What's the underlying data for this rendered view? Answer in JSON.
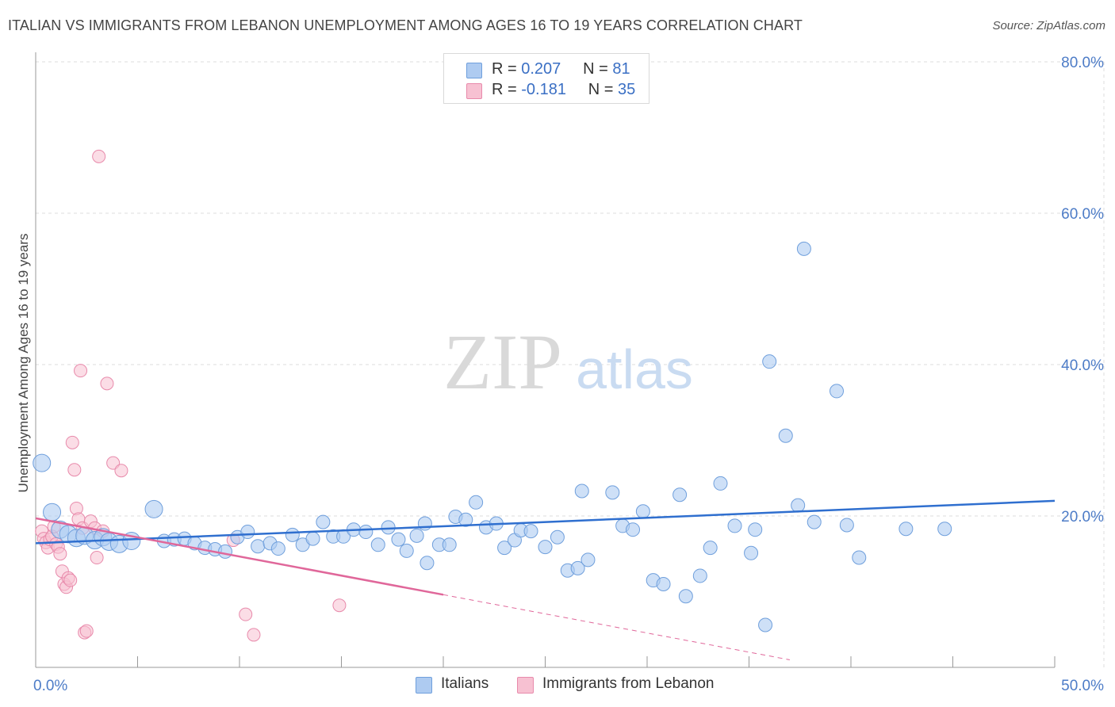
{
  "title": "ITALIAN VS IMMIGRANTS FROM LEBANON UNEMPLOYMENT AMONG AGES 16 TO 19 YEARS CORRELATION CHART",
  "source": "Source: ZipAtlas.com",
  "watermark": {
    "zip": "ZIP",
    "atlas": "atlas"
  },
  "legend": {
    "rows": [
      {
        "r_label": "R =",
        "r_value": "0.207",
        "n_label": "N =",
        "n_value": "81",
        "color": "#aecbf1"
      },
      {
        "r_label": "R =",
        "r_value": "-0.181",
        "n_label": "N =",
        "n_value": "35",
        "color": "#f7c1d2"
      }
    ]
  },
  "bottom_legend": {
    "series1": "Italians",
    "series2": "Immigrants from Lebanon"
  },
  "colors": {
    "blue_fill": "#aecbf1",
    "blue_stroke": "#6f9fdc",
    "blue_line": "#2f6fcf",
    "pink_fill": "#f7c1d2",
    "pink_stroke": "#e88aab",
    "pink_line": "#e0679a",
    "tick_text": "#4d7cc7",
    "grid": "#dddddd"
  },
  "chart_data": {
    "type": "scatter",
    "title": "ITALIAN VS IMMIGRANTS FROM LEBANON UNEMPLOYMENT AMONG AGES 16 TO 19 YEARS CORRELATION CHART",
    "xlabel": "",
    "ylabel": "Unemployment Among Ages 16 to 19 years",
    "xlim": [
      0,
      50
    ],
    "ylim": [
      0,
      80
    ],
    "x_tick_labels": [
      "0.0%",
      "50.0%"
    ],
    "y_ticks": [
      20,
      40,
      60,
      80
    ],
    "y_tick_labels": [
      "20.0%",
      "40.0%",
      "60.0%",
      "80.0%"
    ],
    "grid": true,
    "series": [
      {
        "name": "Italians",
        "r": 0.207,
        "n": 81,
        "trend": {
          "x": [
            0,
            50
          ],
          "y": [
            16.4,
            22.0
          ]
        },
        "points": [
          [
            0.3,
            27.0
          ],
          [
            0.8,
            20.5
          ],
          [
            1.2,
            18.2
          ],
          [
            1.6,
            17.6
          ],
          [
            2.0,
            17.1
          ],
          [
            2.4,
            17.4
          ],
          [
            2.9,
            16.8
          ],
          [
            3.3,
            17.2
          ],
          [
            3.6,
            16.6
          ],
          [
            4.1,
            16.3
          ],
          [
            4.7,
            16.7
          ],
          [
            5.8,
            20.9
          ],
          [
            6.3,
            16.7
          ],
          [
            6.8,
            16.9
          ],
          [
            7.3,
            17.0
          ],
          [
            7.8,
            16.4
          ],
          [
            8.3,
            15.8
          ],
          [
            8.8,
            15.6
          ],
          [
            9.3,
            15.3
          ],
          [
            9.9,
            17.2
          ],
          [
            10.4,
            17.9
          ],
          [
            10.9,
            16.0
          ],
          [
            11.5,
            16.4
          ],
          [
            11.9,
            15.7
          ],
          [
            12.6,
            17.5
          ],
          [
            13.1,
            16.2
          ],
          [
            13.6,
            17.0
          ],
          [
            14.1,
            19.2
          ],
          [
            14.6,
            17.3
          ],
          [
            15.1,
            17.3
          ],
          [
            15.6,
            18.2
          ],
          [
            16.2,
            17.9
          ],
          [
            16.8,
            16.2
          ],
          [
            17.3,
            18.5
          ],
          [
            17.8,
            16.9
          ],
          [
            18.2,
            15.4
          ],
          [
            18.7,
            17.4
          ],
          [
            19.1,
            19.0
          ],
          [
            19.2,
            13.8
          ],
          [
            19.8,
            16.2
          ],
          [
            20.3,
            16.2
          ],
          [
            20.6,
            19.9
          ],
          [
            21.1,
            19.5
          ],
          [
            21.6,
            21.8
          ],
          [
            22.1,
            18.5
          ],
          [
            22.6,
            19.0
          ],
          [
            23.0,
            15.8
          ],
          [
            23.5,
            16.8
          ],
          [
            23.8,
            18.1
          ],
          [
            24.3,
            18.0
          ],
          [
            25.0,
            15.9
          ],
          [
            25.6,
            17.2
          ],
          [
            26.1,
            12.8
          ],
          [
            26.6,
            13.1
          ],
          [
            26.8,
            23.3
          ],
          [
            27.1,
            14.2
          ],
          [
            28.3,
            23.1
          ],
          [
            28.8,
            18.7
          ],
          [
            29.3,
            18.2
          ],
          [
            29.8,
            20.6
          ],
          [
            30.3,
            11.5
          ],
          [
            30.8,
            11.0
          ],
          [
            31.6,
            22.8
          ],
          [
            31.9,
            9.4
          ],
          [
            32.6,
            12.1
          ],
          [
            33.1,
            15.8
          ],
          [
            33.6,
            24.3
          ],
          [
            34.3,
            18.7
          ],
          [
            35.1,
            15.1
          ],
          [
            35.3,
            18.2
          ],
          [
            35.8,
            5.6
          ],
          [
            36.0,
            40.4
          ],
          [
            36.8,
            30.6
          ],
          [
            37.4,
            21.4
          ],
          [
            37.7,
            55.3
          ],
          [
            38.2,
            19.2
          ],
          [
            39.3,
            36.5
          ],
          [
            39.8,
            18.8
          ],
          [
            40.4,
            14.5
          ],
          [
            42.7,
            18.3
          ],
          [
            44.6,
            18.3
          ]
        ],
        "sizes": [
          "l",
          "l",
          "l",
          "l",
          "l",
          "l",
          "l",
          "l",
          "l",
          "l",
          "l",
          "l",
          "m",
          "m",
          "m",
          "m",
          "m",
          "m",
          "m",
          "m",
          "m",
          "m",
          "m",
          "m",
          "m",
          "m",
          "m",
          "m",
          "m",
          "m",
          "m",
          "m",
          "m",
          "m",
          "m",
          "m",
          "m",
          "m",
          "m",
          "m",
          "m",
          "m",
          "m",
          "m",
          "m",
          "m",
          "m",
          "m",
          "m",
          "m",
          "m",
          "m",
          "m",
          "m",
          "m",
          "m",
          "m",
          "m",
          "m",
          "m",
          "m",
          "m",
          "m",
          "m",
          "m",
          "m",
          "m",
          "m",
          "m",
          "m",
          "m",
          "m",
          "m",
          "m",
          "m",
          "m",
          "m",
          "m",
          "m",
          "m",
          "m"
        ]
      },
      {
        "name": "Immigrants from Lebanon",
        "r": -0.181,
        "n": 35,
        "trend": {
          "x": [
            0,
            20
          ],
          "y": [
            19.7,
            9.6
          ]
        },
        "trend_dashed": {
          "x": [
            20,
            37
          ],
          "y": [
            9.6,
            1.0
          ]
        },
        "points": [
          [
            0.3,
            18.0
          ],
          [
            0.4,
            17.0
          ],
          [
            0.5,
            16.5
          ],
          [
            0.6,
            15.8
          ],
          [
            0.7,
            16.9
          ],
          [
            0.8,
            17.3
          ],
          [
            0.9,
            18.6
          ],
          [
            1.0,
            16.3
          ],
          [
            1.1,
            15.9
          ],
          [
            1.2,
            15.0
          ],
          [
            1.3,
            12.7
          ],
          [
            1.4,
            11.0
          ],
          [
            1.5,
            10.6
          ],
          [
            1.6,
            11.8
          ],
          [
            1.7,
            11.5
          ],
          [
            1.8,
            29.7
          ],
          [
            1.9,
            26.1
          ],
          [
            2.0,
            21.0
          ],
          [
            2.1,
            19.6
          ],
          [
            2.2,
            39.2
          ],
          [
            2.3,
            18.4
          ],
          [
            2.4,
            4.6
          ],
          [
            2.5,
            4.8
          ],
          [
            2.7,
            19.3
          ],
          [
            2.9,
            18.4
          ],
          [
            3.0,
            14.5
          ],
          [
            3.1,
            67.5
          ],
          [
            3.3,
            18.0
          ],
          [
            3.5,
            37.5
          ],
          [
            3.8,
            27.0
          ],
          [
            4.2,
            26.0
          ],
          [
            9.7,
            16.8
          ],
          [
            10.3,
            7.0
          ],
          [
            10.7,
            4.3
          ],
          [
            14.9,
            8.2
          ]
        ]
      }
    ]
  }
}
